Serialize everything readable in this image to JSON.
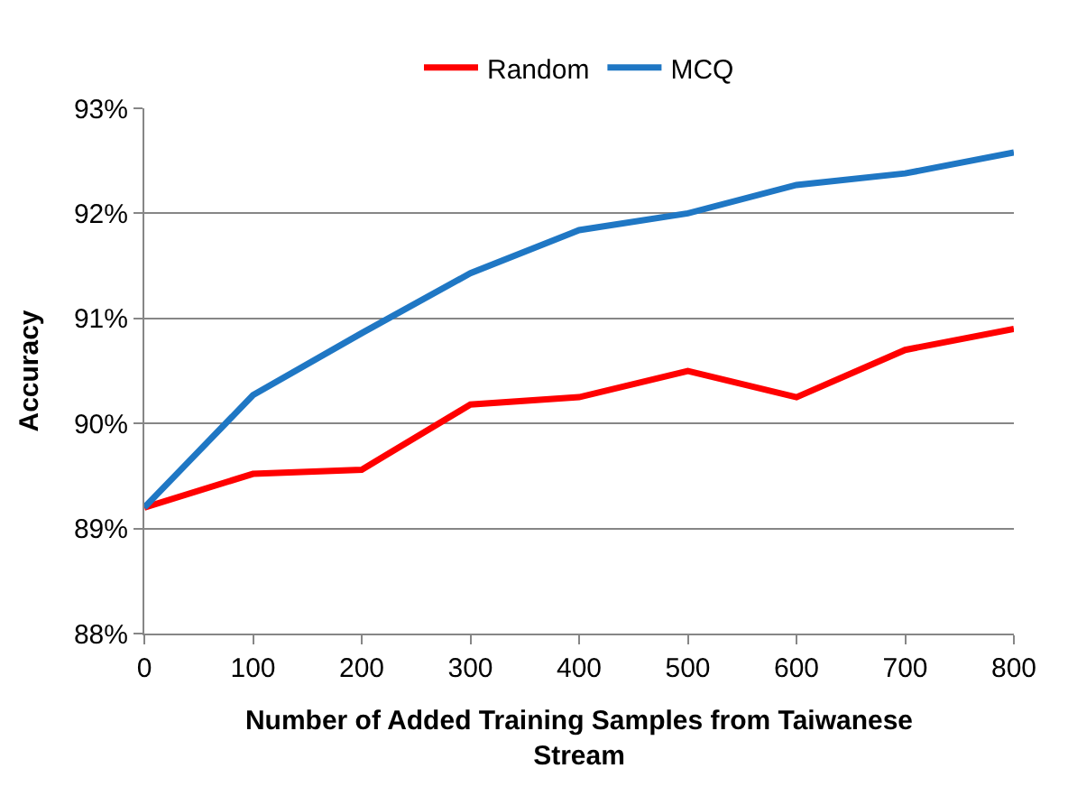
{
  "chart_data": {
    "type": "line",
    "xlabel": "Number of Added Training Samples from Taiwanese\nStream",
    "ylabel": "Accuracy",
    "x": [
      0,
      100,
      200,
      300,
      400,
      500,
      600,
      700,
      800
    ],
    "series": [
      {
        "name": "Random",
        "color": "#ff0000",
        "values": [
          89.2,
          89.52,
          89.56,
          90.18,
          90.25,
          90.5,
          90.25,
          90.7,
          90.9
        ]
      },
      {
        "name": "MCQ",
        "color": "#1f77c4",
        "values": [
          89.2,
          90.27,
          90.86,
          91.43,
          91.84,
          92.0,
          92.27,
          92.38,
          92.58
        ]
      }
    ],
    "xlim": [
      0,
      800
    ],
    "xticks": [
      0,
      100,
      200,
      300,
      400,
      500,
      600,
      700,
      800
    ],
    "ylim": [
      88,
      93
    ],
    "yticks": [
      {
        "value": 88,
        "label": "88%"
      },
      {
        "value": 89,
        "label": "89%"
      },
      {
        "value": 90,
        "label": "90%"
      },
      {
        "value": 91,
        "label": "91%"
      },
      {
        "value": 92,
        "label": "92%"
      },
      {
        "value": 93,
        "label": "93%"
      }
    ],
    "grid": "y",
    "legend": "top",
    "marker": "none",
    "line_style": "solid"
  }
}
